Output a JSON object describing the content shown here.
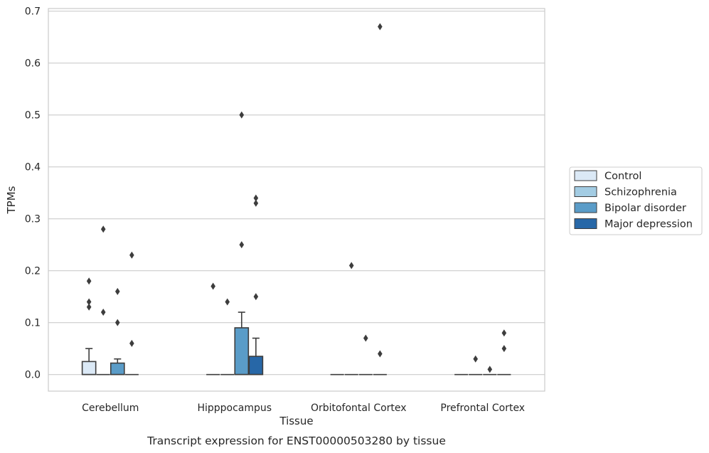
{
  "chart_data": {
    "type": "box",
    "xlabel": "Tissue",
    "ylabel": "TPMs",
    "caption": "Transcript expression for ENST00000503280 by tissue",
    "ylim": [
      -0.032,
      0.705
    ],
    "yticks": [
      "0.0",
      "0.1",
      "0.2",
      "0.3",
      "0.4",
      "0.5",
      "0.6",
      "0.7"
    ],
    "grid": "horizontal",
    "legend_position": "right",
    "categories": [
      "Cerebellum",
      "Hipppocampus",
      "Orbitofontal Cortex",
      "Prefrontal Cortex"
    ],
    "series": [
      {
        "name": "Control",
        "color": "#dbe9f6",
        "boxes": [
          {
            "q1": 0.0,
            "median": 0.0,
            "q3": 0.025,
            "whisker_low": 0.0,
            "whisker_high": 0.05,
            "outliers": [
              0.18,
              0.14,
              0.13
            ]
          },
          {
            "q1": 0.0,
            "median": 0.0,
            "q3": 0.0,
            "whisker_low": 0.0,
            "whisker_high": 0.0,
            "outliers": [
              0.17
            ]
          },
          {
            "q1": 0.0,
            "median": 0.0,
            "q3": 0.0,
            "whisker_low": 0.0,
            "whisker_high": 0.0,
            "outliers": []
          },
          {
            "q1": 0.0,
            "median": 0.0,
            "q3": 0.0,
            "whisker_low": 0.0,
            "whisker_high": 0.0,
            "outliers": []
          }
        ]
      },
      {
        "name": "Schizophrenia",
        "color": "#a3cce3",
        "boxes": [
          {
            "q1": 0.0,
            "median": 0.0,
            "q3": 0.0,
            "whisker_low": 0.0,
            "whisker_high": 0.0,
            "outliers": [
              0.28,
              0.12
            ]
          },
          {
            "q1": 0.0,
            "median": 0.0,
            "q3": 0.0,
            "whisker_low": 0.0,
            "whisker_high": 0.0,
            "outliers": [
              0.14
            ]
          },
          {
            "q1": 0.0,
            "median": 0.0,
            "q3": 0.0,
            "whisker_low": 0.0,
            "whisker_high": 0.0,
            "outliers": [
              0.21
            ]
          },
          {
            "q1": 0.0,
            "median": 0.0,
            "q3": 0.0,
            "whisker_low": 0.0,
            "whisker_high": 0.0,
            "outliers": [
              0.03
            ]
          }
        ]
      },
      {
        "name": "Bipolar disorder",
        "color": "#5a9cc8",
        "boxes": [
          {
            "q1": 0.0,
            "median": 0.0,
            "q3": 0.022,
            "whisker_low": 0.0,
            "whisker_high": 0.03,
            "outliers": [
              0.16,
              0.1
            ]
          },
          {
            "q1": 0.0,
            "median": 0.0,
            "q3": 0.09,
            "whisker_low": 0.0,
            "whisker_high": 0.12,
            "outliers": [
              0.5,
              0.25
            ]
          },
          {
            "q1": 0.0,
            "median": 0.0,
            "q3": 0.0,
            "whisker_low": 0.0,
            "whisker_high": 0.0,
            "outliers": [
              0.07
            ]
          },
          {
            "q1": 0.0,
            "median": 0.0,
            "q3": 0.0,
            "whisker_low": 0.0,
            "whisker_high": 0.0,
            "outliers": [
              0.01
            ]
          }
        ]
      },
      {
        "name": "Major depression",
        "color": "#2767a7",
        "boxes": [
          {
            "q1": 0.0,
            "median": 0.0,
            "q3": 0.0,
            "whisker_low": 0.0,
            "whisker_high": 0.0,
            "outliers": [
              0.23,
              0.06
            ]
          },
          {
            "q1": 0.0,
            "median": 0.0,
            "q3": 0.035,
            "whisker_low": 0.0,
            "whisker_high": 0.07,
            "outliers": [
              0.34,
              0.33,
              0.15
            ]
          },
          {
            "q1": 0.0,
            "median": 0.0,
            "q3": 0.0,
            "whisker_low": 0.0,
            "whisker_high": 0.0,
            "outliers": [
              0.67,
              0.04
            ]
          },
          {
            "q1": 0.0,
            "median": 0.0,
            "q3": 0.0,
            "whisker_low": 0.0,
            "whisker_high": 0.0,
            "outliers": [
              0.08,
              0.05
            ]
          }
        ]
      }
    ],
    "colors": {
      "grid": "#cccccc",
      "spine": "#cccccc",
      "box_edge": "#3d3d3d",
      "outlier": "#3d3d3d"
    }
  }
}
